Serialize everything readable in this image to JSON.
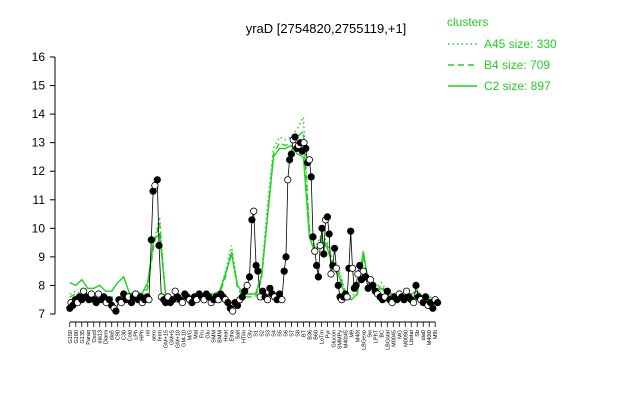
{
  "chart_data": {
    "type": "line",
    "title": "yraD [2754820,2755119,+1]",
    "xlabel": "",
    "ylabel": "",
    "ylim": [
      7,
      16
    ],
    "yticks": [
      7,
      8,
      9,
      10,
      11,
      12,
      13,
      14,
      15,
      16
    ],
    "xtick_labels": [
      "G150",
      "G180",
      "G135",
      "Paraq",
      "Oxctl",
      "dia13",
      "Diami",
      "dia5",
      "C90",
      "C30",
      "Cold",
      "LPh",
      "HPh",
      "nit",
      "aero",
      "ferm",
      "GM+15",
      "GM+5",
      "GM+10",
      "GM-10",
      "M/G",
      "Mal",
      "Fru",
      "Glu",
      "SMM",
      "BMM",
      "Heat",
      "Etha",
      "Salt",
      "HTim",
      "Gly",
      "S1",
      "S2",
      "S3",
      "S4",
      "S5",
      "S6",
      "S7",
      "S8",
      "BT",
      "B36",
      "B60",
      "LoTm",
      "Pyr",
      "Glucon",
      "SMMPy",
      "M40t45",
      "M9",
      "M40t",
      "LBGexp",
      "Sw",
      "LPhT",
      "BC",
      "LBGstat",
      "M0045",
      "MG",
      "M0090",
      "Lbstat",
      "Sb",
      "dia0",
      "M40t0",
      "M9t"
    ],
    "series": [
      {
        "name": "A45 size: 330",
        "style": "dotted",
        "values": [
          7.7,
          7.8,
          7.7,
          7.6,
          7.7,
          7.6,
          7.6,
          7.6,
          7.5,
          7.8,
          7.6,
          7.8,
          7.7,
          8.0,
          9.5,
          10.4,
          7.6,
          7.5,
          7.4,
          7.5,
          7.5,
          7.4,
          7.5,
          7.6,
          7.7,
          7.8,
          8.5,
          9.4,
          8.0,
          7.7,
          7.7,
          7.7,
          8.4,
          10.8,
          12.8,
          13.2,
          13.1,
          13.2,
          13.5,
          13.9,
          10.0,
          9.3,
          9.8,
          9.5,
          8.8,
          8.5,
          7.8,
          7.6,
          7.8,
          9.1,
          8.0,
          7.9,
          8.1,
          7.8,
          7.7,
          7.6,
          7.6,
          7.7,
          7.8,
          7.6,
          7.6,
          7.5
        ]
      },
      {
        "name": "B4 size: 709",
        "style": "dashed",
        "values": [
          7.6,
          7.7,
          7.6,
          7.5,
          7.6,
          7.5,
          7.5,
          7.5,
          7.5,
          7.7,
          7.5,
          7.7,
          7.6,
          7.9,
          9.4,
          10.2,
          7.5,
          7.4,
          7.4,
          7.5,
          7.5,
          7.4,
          7.5,
          7.6,
          7.6,
          7.7,
          8.3,
          9.2,
          7.9,
          7.6,
          7.6,
          7.6,
          8.2,
          10.5,
          12.6,
          13.0,
          12.9,
          13.0,
          13.2,
          13.4,
          9.9,
          9.2,
          9.7,
          9.4,
          8.7,
          8.4,
          7.7,
          7.5,
          7.7,
          9.0,
          7.9,
          7.8,
          8.0,
          7.7,
          7.6,
          7.5,
          7.5,
          7.6,
          7.7,
          7.5,
          7.5,
          7.4
        ]
      },
      {
        "name": "C2 size: 897",
        "style": "solid",
        "values": [
          8.1,
          8.0,
          8.2,
          7.9,
          7.9,
          8.0,
          7.8,
          7.8,
          8.1,
          8.3,
          7.7,
          7.8,
          7.7,
          8.1,
          9.6,
          9.8,
          7.7,
          7.6,
          7.5,
          7.6,
          7.6,
          7.5,
          7.6,
          7.7,
          7.7,
          7.8,
          8.4,
          9.1,
          8.0,
          7.7,
          7.7,
          7.7,
          8.3,
          10.4,
          12.5,
          12.8,
          12.8,
          12.9,
          12.6,
          12.5,
          9.7,
          9.1,
          9.6,
          9.3,
          8.6,
          8.3,
          7.6,
          7.5,
          7.7,
          9.2,
          7.9,
          7.8,
          7.9,
          7.7,
          7.7,
          7.6,
          7.6,
          7.7,
          7.8,
          7.6,
          7.6,
          7.5
        ]
      }
    ],
    "points": [
      {
        "x": 0,
        "y": 7.2
      },
      {
        "x": 0.2,
        "y": 7.4
      },
      {
        "x": 0.5,
        "y": 7.3
      },
      {
        "x": 0.9,
        "y": 7.5
      },
      {
        "x": 1.3,
        "y": 7.4
      },
      {
        "x": 1.6,
        "y": 7.6
      },
      {
        "x": 2.0,
        "y": 7.5
      },
      {
        "x": 2.3,
        "y": 7.8
      },
      {
        "x": 2.7,
        "y": 7.6
      },
      {
        "x": 3.2,
        "y": 7.5
      },
      {
        "x": 3.6,
        "y": 7.7
      },
      {
        "x": 4.1,
        "y": 7.5
      },
      {
        "x": 4.4,
        "y": 7.4
      },
      {
        "x": 4.8,
        "y": 7.7
      },
      {
        "x": 5.3,
        "y": 7.5
      },
      {
        "x": 5.7,
        "y": 7.6
      },
      {
        "x": 6.1,
        "y": 7.4
      },
      {
        "x": 6.6,
        "y": 7.5
      },
      {
        "x": 7.0,
        "y": 7.3
      },
      {
        "x": 7.4,
        "y": 7.2
      },
      {
        "x": 7.7,
        "y": 7.1
      },
      {
        "x": 8.2,
        "y": 7.5
      },
      {
        "x": 8.6,
        "y": 7.4
      },
      {
        "x": 9.0,
        "y": 7.7
      },
      {
        "x": 9.4,
        "y": 7.5
      },
      {
        "x": 9.8,
        "y": 7.6
      },
      {
        "x": 10.3,
        "y": 7.4
      },
      {
        "x": 10.6,
        "y": 7.6
      },
      {
        "x": 11.0,
        "y": 7.7
      },
      {
        "x": 11.4,
        "y": 7.5
      },
      {
        "x": 11.8,
        "y": 7.6
      },
      {
        "x": 12.1,
        "y": 7.4
      },
      {
        "x": 12.5,
        "y": 7.5
      },
      {
        "x": 12.9,
        "y": 7.6
      },
      {
        "x": 13.2,
        "y": 7.5
      },
      {
        "x": 13.6,
        "y": 9.6
      },
      {
        "x": 13.9,
        "y": 11.3
      },
      {
        "x": 14.2,
        "y": 11.5
      },
      {
        "x": 14.6,
        "y": 11.7
      },
      {
        "x": 14.9,
        "y": 9.4
      },
      {
        "x": 15.3,
        "y": 7.6
      },
      {
        "x": 15.7,
        "y": 7.5
      },
      {
        "x": 16.0,
        "y": 7.4
      },
      {
        "x": 16.4,
        "y": 7.6
      },
      {
        "x": 16.8,
        "y": 7.4
      },
      {
        "x": 17.2,
        "y": 7.5
      },
      {
        "x": 17.6,
        "y": 7.8
      },
      {
        "x": 18.0,
        "y": 7.6
      },
      {
        "x": 18.4,
        "y": 7.5
      },
      {
        "x": 18.8,
        "y": 7.4
      },
      {
        "x": 19.2,
        "y": 7.7
      },
      {
        "x": 19.6,
        "y": 7.6
      },
      {
        "x": 20.0,
        "y": 7.5
      },
      {
        "x": 20.4,
        "y": 7.4
      },
      {
        "x": 20.8,
        "y": 7.6
      },
      {
        "x": 21.2,
        "y": 7.5
      },
      {
        "x": 21.6,
        "y": 7.7
      },
      {
        "x": 22.0,
        "y": 7.6
      },
      {
        "x": 22.4,
        "y": 7.5
      },
      {
        "x": 22.8,
        "y": 7.7
      },
      {
        "x": 23.2,
        "y": 7.6
      },
      {
        "x": 23.6,
        "y": 7.4
      },
      {
        "x": 24.0,
        "y": 7.5
      },
      {
        "x": 24.4,
        "y": 7.6
      },
      {
        "x": 24.8,
        "y": 7.5
      },
      {
        "x": 25.2,
        "y": 7.7
      },
      {
        "x": 25.6,
        "y": 7.6
      },
      {
        "x": 26.0,
        "y": 7.5
      },
      {
        "x": 26.4,
        "y": 7.4
      },
      {
        "x": 26.8,
        "y": 7.2
      },
      {
        "x": 27.2,
        "y": 7.1
      },
      {
        "x": 27.6,
        "y": 7.4
      },
      {
        "x": 28.0,
        "y": 7.3
      },
      {
        "x": 28.4,
        "y": 7.5
      },
      {
        "x": 28.8,
        "y": 7.6
      },
      {
        "x": 29.2,
        "y": 7.8
      },
      {
        "x": 29.6,
        "y": 8.0
      },
      {
        "x": 30.0,
        "y": 8.3
      },
      {
        "x": 30.4,
        "y": 10.3
      },
      {
        "x": 30.7,
        "y": 10.6
      },
      {
        "x": 31.1,
        "y": 8.7
      },
      {
        "x": 31.4,
        "y": 8.5
      },
      {
        "x": 31.8,
        "y": 7.6
      },
      {
        "x": 32.2,
        "y": 7.8
      },
      {
        "x": 32.6,
        "y": 7.6
      },
      {
        "x": 33.0,
        "y": 7.5
      },
      {
        "x": 33.4,
        "y": 7.9
      },
      {
        "x": 33.8,
        "y": 7.7
      },
      {
        "x": 34.2,
        "y": 7.6
      },
      {
        "x": 34.6,
        "y": 7.5
      },
      {
        "x": 35.0,
        "y": 7.7
      },
      {
        "x": 35.4,
        "y": 7.5
      },
      {
        "x": 35.8,
        "y": 8.5
      },
      {
        "x": 36.1,
        "y": 9.0
      },
      {
        "x": 36.4,
        "y": 11.7
      },
      {
        "x": 36.7,
        "y": 12.4
      },
      {
        "x": 37.0,
        "y": 12.6
      },
      {
        "x": 37.3,
        "y": 13.1
      },
      {
        "x": 37.6,
        "y": 13.2
      },
      {
        "x": 37.9,
        "y": 12.8
      },
      {
        "x": 38.2,
        "y": 12.9
      },
      {
        "x": 38.5,
        "y": 13.0
      },
      {
        "x": 38.8,
        "y": 12.7
      },
      {
        "x": 39.1,
        "y": 13.0
      },
      {
        "x": 39.4,
        "y": 12.8
      },
      {
        "x": 39.7,
        "y": 12.3
      },
      {
        "x": 40.0,
        "y": 12.4
      },
      {
        "x": 40.3,
        "y": 11.8
      },
      {
        "x": 40.6,
        "y": 9.7
      },
      {
        "x": 40.9,
        "y": 9.2
      },
      {
        "x": 41.2,
        "y": 8.7
      },
      {
        "x": 41.5,
        "y": 8.3
      },
      {
        "x": 41.8,
        "y": 9.4
      },
      {
        "x": 42.1,
        "y": 10.0
      },
      {
        "x": 42.4,
        "y": 9.1
      },
      {
        "x": 42.7,
        "y": 10.3
      },
      {
        "x": 43.0,
        "y": 10.4
      },
      {
        "x": 43.3,
        "y": 9.8
      },
      {
        "x": 43.6,
        "y": 8.4
      },
      {
        "x": 43.9,
        "y": 8.7
      },
      {
        "x": 44.2,
        "y": 9.3
      },
      {
        "x": 44.5,
        "y": 8.6
      },
      {
        "x": 44.8,
        "y": 8.0
      },
      {
        "x": 45.1,
        "y": 7.6
      },
      {
        "x": 45.4,
        "y": 7.5
      },
      {
        "x": 45.7,
        "y": 7.6
      },
      {
        "x": 46.0,
        "y": 7.7
      },
      {
        "x": 46.3,
        "y": 7.6
      },
      {
        "x": 46.6,
        "y": 8.6
      },
      {
        "x": 46.9,
        "y": 9.9
      },
      {
        "x": 47.2,
        "y": 8.6
      },
      {
        "x": 47.5,
        "y": 7.9
      },
      {
        "x": 47.8,
        "y": 8.0
      },
      {
        "x": 48.1,
        "y": 8.4
      },
      {
        "x": 48.4,
        "y": 8.7
      },
      {
        "x": 48.7,
        "y": 8.2
      },
      {
        "x": 49.0,
        "y": 8.5
      },
      {
        "x": 49.4,
        "y": 8.3
      },
      {
        "x": 49.8,
        "y": 7.9
      },
      {
        "x": 50.2,
        "y": 8.2
      },
      {
        "x": 50.6,
        "y": 8.0
      },
      {
        "x": 51.0,
        "y": 7.8
      },
      {
        "x": 51.4,
        "y": 7.7
      },
      {
        "x": 51.8,
        "y": 7.6
      },
      {
        "x": 52.2,
        "y": 7.5
      },
      {
        "x": 52.6,
        "y": 7.6
      },
      {
        "x": 53.0,
        "y": 7.8
      },
      {
        "x": 53.4,
        "y": 7.5
      },
      {
        "x": 53.8,
        "y": 7.4
      },
      {
        "x": 54.2,
        "y": 7.6
      },
      {
        "x": 54.6,
        "y": 7.5
      },
      {
        "x": 55.0,
        "y": 7.7
      },
      {
        "x": 55.4,
        "y": 7.6
      },
      {
        "x": 55.8,
        "y": 7.5
      },
      {
        "x": 56.2,
        "y": 7.8
      },
      {
        "x": 56.6,
        "y": 7.6
      },
      {
        "x": 57.0,
        "y": 7.5
      },
      {
        "x": 57.4,
        "y": 7.4
      },
      {
        "x": 57.8,
        "y": 8.0
      },
      {
        "x": 58.2,
        "y": 7.6
      },
      {
        "x": 58.6,
        "y": 7.5
      },
      {
        "x": 59.0,
        "y": 7.4
      },
      {
        "x": 59.4,
        "y": 7.6
      },
      {
        "x": 59.8,
        "y": 7.3
      },
      {
        "x": 60.2,
        "y": 7.4
      },
      {
        "x": 60.6,
        "y": 7.2
      },
      {
        "x": 61.0,
        "y": 7.5
      },
      {
        "x": 61.4,
        "y": 7.4
      }
    ],
    "legend": {
      "title": "clusters",
      "position": "top-right"
    },
    "colors": {
      "line": "#1fd11f",
      "point_filled": "#000000",
      "point_open": "#ffffff",
      "axis": "#000000"
    },
    "grid": false
  }
}
